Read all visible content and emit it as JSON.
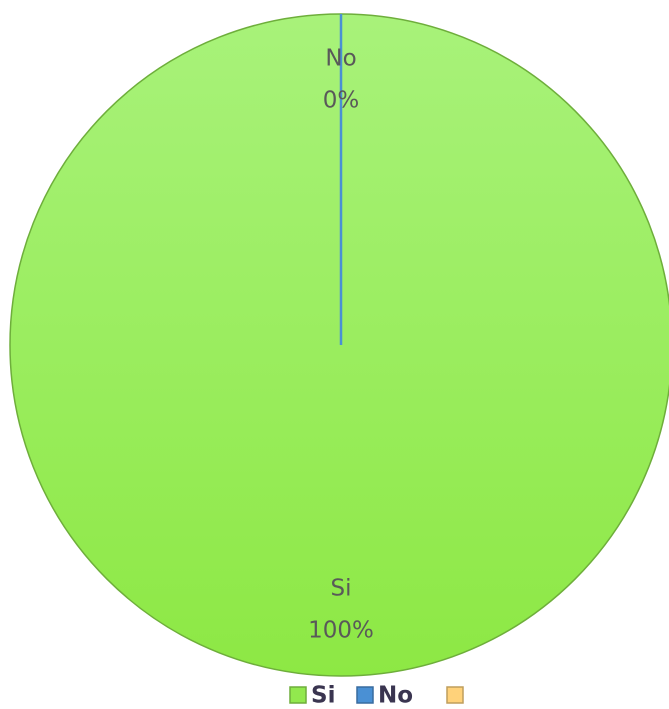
{
  "chart_data": {
    "type": "pie",
    "categories": [
      "Si",
      "No",
      null
    ],
    "values": [
      100,
      0,
      0
    ],
    "value_labels": [
      "100%",
      "0%",
      null
    ],
    "colors": [
      "#92e84e",
      "#4a90d4",
      "#ffd27a"
    ],
    "legend": "bottom"
  }
}
